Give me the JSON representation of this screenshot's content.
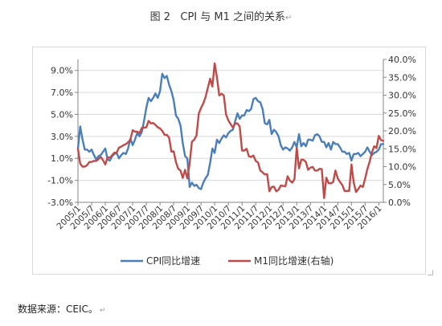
{
  "caption": {
    "fig_label": "图 2",
    "title": "CPI 与 M1 之间的关系",
    "end_mark": "↵"
  },
  "source": {
    "text": "数据来源：CEIC。",
    "end_mark": "↵"
  },
  "colors": {
    "cpi": "#4a7ebb",
    "m1": "#be4b48",
    "axis": "#868686",
    "text": "#333333"
  },
  "chart_data": {
    "type": "line",
    "title": "",
    "xlabel": "",
    "ylabel": "",
    "y_left": {
      "ticks": [
        "-3.0%",
        "-1.0%",
        "1.0%",
        "3.0%",
        "5.0%",
        "7.0%",
        "9.0%"
      ],
      "range": [
        -3,
        10
      ]
    },
    "y_right": {
      "ticks": [
        "0.0%",
        "5.0%",
        "10.0%",
        "15.0%",
        "20.0%",
        "25.0%",
        "30.0%",
        "35.0%",
        "40.0%"
      ],
      "range": [
        0,
        40
      ]
    },
    "x_ticks": [
      "2005/1",
      "2005/7",
      "2006/1",
      "2006/7",
      "2007/1",
      "2007/7",
      "2008/1",
      "2008/7",
      "2009/1",
      "2009/7",
      "2010/1",
      "2010/7",
      "2011/1",
      "2011/7",
      "2012/1",
      "2012/7",
      "2013/1",
      "2013/7",
      "2014/1",
      "2014/7",
      "2015/1",
      "2015/7",
      "2016/1"
    ],
    "grid": "horizontal",
    "legend_position": "bottom",
    "series": [
      {
        "name": "CPI同比增速",
        "axis": "left",
        "color": "#4a7ebb",
        "points": [
          [
            "2005/1",
            1.9
          ],
          [
            "2005/2",
            3.9
          ],
          [
            "2005/3",
            2.7
          ],
          [
            "2005/4",
            1.8
          ],
          [
            "2005/5",
            1.8
          ],
          [
            "2005/6",
            1.6
          ],
          [
            "2005/7",
            1.8
          ],
          [
            "2005/8",
            1.3
          ],
          [
            "2005/9",
            0.9
          ],
          [
            "2005/10",
            1.2
          ],
          [
            "2005/11",
            1.3
          ],
          [
            "2005/12",
            1.6
          ],
          [
            "2006/1",
            1.9
          ],
          [
            "2006/2",
            0.9
          ],
          [
            "2006/3",
            0.8
          ],
          [
            "2006/4",
            1.2
          ],
          [
            "2006/5",
            1.4
          ],
          [
            "2006/6",
            1.5
          ],
          [
            "2006/7",
            1.0
          ],
          [
            "2006/8",
            1.3
          ],
          [
            "2006/9",
            1.5
          ],
          [
            "2006/10",
            1.4
          ],
          [
            "2006/11",
            1.9
          ],
          [
            "2006/12",
            2.8
          ],
          [
            "2007/1",
            2.2
          ],
          [
            "2007/2",
            2.7
          ],
          [
            "2007/3",
            3.3
          ],
          [
            "2007/4",
            3.0
          ],
          [
            "2007/5",
            3.4
          ],
          [
            "2007/6",
            4.4
          ],
          [
            "2007/7",
            5.6
          ],
          [
            "2007/8",
            6.5
          ],
          [
            "2007/9",
            6.2
          ],
          [
            "2007/10",
            6.5
          ],
          [
            "2007/11",
            6.9
          ],
          [
            "2007/12",
            6.5
          ],
          [
            "2008/1",
            7.1
          ],
          [
            "2008/2",
            8.7
          ],
          [
            "2008/3",
            8.3
          ],
          [
            "2008/4",
            8.5
          ],
          [
            "2008/5",
            7.7
          ],
          [
            "2008/6",
            7.1
          ],
          [
            "2008/7",
            6.3
          ],
          [
            "2008/8",
            4.9
          ],
          [
            "2008/9",
            4.6
          ],
          [
            "2008/10",
            4.0
          ],
          [
            "2008/11",
            2.4
          ],
          [
            "2008/12",
            1.2
          ],
          [
            "2009/1",
            1.0
          ],
          [
            "2009/2",
            -1.6
          ],
          [
            "2009/3",
            -1.2
          ],
          [
            "2009/4",
            -1.5
          ],
          [
            "2009/5",
            -1.4
          ],
          [
            "2009/6",
            -1.7
          ],
          [
            "2009/7",
            -1.8
          ],
          [
            "2009/8",
            -1.2
          ],
          [
            "2009/9",
            -0.8
          ],
          [
            "2009/10",
            -0.5
          ],
          [
            "2009/11",
            0.6
          ],
          [
            "2009/12",
            1.9
          ],
          [
            "2010/1",
            1.5
          ],
          [
            "2010/2",
            2.7
          ],
          [
            "2010/3",
            2.4
          ],
          [
            "2010/4",
            2.8
          ],
          [
            "2010/5",
            3.1
          ],
          [
            "2010/6",
            2.9
          ],
          [
            "2010/7",
            3.3
          ],
          [
            "2010/8",
            3.5
          ],
          [
            "2010/9",
            3.6
          ],
          [
            "2010/10",
            4.4
          ],
          [
            "2010/11",
            5.1
          ],
          [
            "2010/12",
            4.6
          ],
          [
            "2011/1",
            4.9
          ],
          [
            "2011/2",
            4.9
          ],
          [
            "2011/3",
            5.4
          ],
          [
            "2011/4",
            5.3
          ],
          [
            "2011/5",
            5.5
          ],
          [
            "2011/6",
            6.4
          ],
          [
            "2011/7",
            6.5
          ],
          [
            "2011/8",
            6.2
          ],
          [
            "2011/9",
            6.1
          ],
          [
            "2011/10",
            5.5
          ],
          [
            "2011/11",
            4.2
          ],
          [
            "2011/12",
            4.1
          ],
          [
            "2012/1",
            4.5
          ],
          [
            "2012/2",
            3.2
          ],
          [
            "2012/3",
            3.6
          ],
          [
            "2012/4",
            3.4
          ],
          [
            "2012/5",
            3.0
          ],
          [
            "2012/6",
            2.2
          ],
          [
            "2012/7",
            1.8
          ],
          [
            "2012/8",
            2.0
          ],
          [
            "2012/9",
            1.9
          ],
          [
            "2012/10",
            1.7
          ],
          [
            "2012/11",
            2.0
          ],
          [
            "2012/12",
            2.5
          ],
          [
            "2013/1",
            2.0
          ],
          [
            "2013/2",
            3.2
          ],
          [
            "2013/3",
            2.1
          ],
          [
            "2013/4",
            2.4
          ],
          [
            "2013/5",
            2.1
          ],
          [
            "2013/6",
            2.7
          ],
          [
            "2013/7",
            2.7
          ],
          [
            "2013/8",
            2.6
          ],
          [
            "2013/9",
            3.1
          ],
          [
            "2013/10",
            3.2
          ],
          [
            "2013/11",
            3.0
          ],
          [
            "2013/12",
            2.5
          ],
          [
            "2014/1",
            2.5
          ],
          [
            "2014/2",
            2.0
          ],
          [
            "2014/3",
            2.4
          ],
          [
            "2014/4",
            1.8
          ],
          [
            "2014/5",
            2.5
          ],
          [
            "2014/6",
            2.3
          ],
          [
            "2014/7",
            2.3
          ],
          [
            "2014/8",
            2.0
          ],
          [
            "2014/9",
            1.6
          ],
          [
            "2014/10",
            1.6
          ],
          [
            "2014/11",
            1.4
          ],
          [
            "2014/12",
            1.5
          ],
          [
            "2015/1",
            0.8
          ],
          [
            "2015/2",
            1.4
          ],
          [
            "2015/3",
            1.4
          ],
          [
            "2015/4",
            1.5
          ],
          [
            "2015/5",
            1.2
          ],
          [
            "2015/6",
            1.4
          ],
          [
            "2015/7",
            1.6
          ],
          [
            "2015/8",
            2.0
          ],
          [
            "2015/9",
            1.6
          ],
          [
            "2015/10",
            1.3
          ],
          [
            "2015/11",
            1.5
          ],
          [
            "2015/12",
            1.6
          ],
          [
            "2016/1",
            1.8
          ],
          [
            "2016/2",
            2.3
          ],
          [
            "2016/3",
            2.3
          ]
        ]
      },
      {
        "name": "M1同比增速(右轴)",
        "axis": "right",
        "color": "#be4b48",
        "points": [
          [
            "2005/1",
            15.0
          ],
          [
            "2005/2",
            10.8
          ],
          [
            "2005/3",
            10.0
          ],
          [
            "2005/4",
            10.0
          ],
          [
            "2005/5",
            10.4
          ],
          [
            "2005/6",
            11.3
          ],
          [
            "2005/7",
            11.3
          ],
          [
            "2005/8",
            11.6
          ],
          [
            "2005/9",
            11.6
          ],
          [
            "2005/10",
            12.1
          ],
          [
            "2005/11",
            12.7
          ],
          [
            "2005/12",
            11.8
          ],
          [
            "2006/1",
            10.6
          ],
          [
            "2006/2",
            12.6
          ],
          [
            "2006/3",
            12.5
          ],
          [
            "2006/4",
            13.2
          ],
          [
            "2006/5",
            13.9
          ],
          [
            "2006/6",
            13.9
          ],
          [
            "2006/7",
            15.3
          ],
          [
            "2006/8",
            15.6
          ],
          [
            "2006/9",
            16.0
          ],
          [
            "2006/10",
            16.3
          ],
          [
            "2006/11",
            16.8
          ],
          [
            "2006/12",
            17.5
          ],
          [
            "2007/1",
            20.2
          ],
          [
            "2007/2",
            19.8
          ],
          [
            "2007/3",
            19.8
          ],
          [
            "2007/4",
            19.4
          ],
          [
            "2007/5",
            20.8
          ],
          [
            "2007/6",
            20.9
          ],
          [
            "2007/7",
            21.0
          ],
          [
            "2007/8",
            22.8
          ],
          [
            "2007/9",
            22.1
          ],
          [
            "2007/10",
            22.2
          ],
          [
            "2007/11",
            21.7
          ],
          [
            "2007/12",
            21.0
          ],
          [
            "2008/1",
            20.7
          ],
          [
            "2008/2",
            20.0
          ],
          [
            "2008/3",
            18.9
          ],
          [
            "2008/4",
            18.9
          ],
          [
            "2008/5",
            18.1
          ],
          [
            "2008/6",
            14.2
          ],
          [
            "2008/7",
            14.3
          ],
          [
            "2008/8",
            11.3
          ],
          [
            "2008/9",
            9.4
          ],
          [
            "2008/10",
            8.9
          ],
          [
            "2008/11",
            6.8
          ],
          [
            "2008/12",
            9.1
          ],
          [
            "2009/1",
            6.7
          ],
          [
            "2009/2",
            10.9
          ],
          [
            "2009/3",
            17.0
          ],
          [
            "2009/4",
            17.5
          ],
          [
            "2009/5",
            18.7
          ],
          [
            "2009/6",
            24.8
          ],
          [
            "2009/7",
            26.4
          ],
          [
            "2009/8",
            27.7
          ],
          [
            "2009/9",
            29.5
          ],
          [
            "2009/10",
            32.0
          ],
          [
            "2009/11",
            34.6
          ],
          [
            "2009/12",
            32.4
          ],
          [
            "2010/1",
            38.9
          ],
          [
            "2010/2",
            34.9
          ],
          [
            "2010/3",
            29.9
          ],
          [
            "2010/4",
            30.4
          ],
          [
            "2010/5",
            29.9
          ],
          [
            "2010/6",
            24.6
          ],
          [
            "2010/7",
            22.9
          ],
          [
            "2010/8",
            21.9
          ],
          [
            "2010/9",
            20.9
          ],
          [
            "2010/10",
            22.1
          ],
          [
            "2010/11",
            22.1
          ],
          [
            "2010/12",
            21.2
          ],
          [
            "2011/1",
            14.5
          ],
          [
            "2011/2",
            14.5
          ],
          [
            "2011/3",
            15.0
          ],
          [
            "2011/4",
            12.9
          ],
          [
            "2011/5",
            12.7
          ],
          [
            "2011/6",
            13.1
          ],
          [
            "2011/7",
            11.6
          ],
          [
            "2011/8",
            11.2
          ],
          [
            "2011/9",
            8.9
          ],
          [
            "2011/10",
            8.4
          ],
          [
            "2011/11",
            7.8
          ],
          [
            "2011/12",
            7.9
          ],
          [
            "2012/1",
            3.1
          ],
          [
            "2012/2",
            4.3
          ],
          [
            "2012/3",
            4.4
          ],
          [
            "2012/4",
            3.1
          ],
          [
            "2012/5",
            3.5
          ],
          [
            "2012/6",
            4.7
          ],
          [
            "2012/7",
            4.6
          ],
          [
            "2012/8",
            4.5
          ],
          [
            "2012/9",
            7.3
          ],
          [
            "2012/10",
            6.1
          ],
          [
            "2012/11",
            5.5
          ],
          [
            "2012/12",
            6.5
          ],
          [
            "2013/1",
            15.3
          ],
          [
            "2013/2",
            9.5
          ],
          [
            "2013/3",
            11.9
          ],
          [
            "2013/4",
            11.9
          ],
          [
            "2013/5",
            11.3
          ],
          [
            "2013/6",
            9.1
          ],
          [
            "2013/7",
            9.7
          ],
          [
            "2013/8",
            9.9
          ],
          [
            "2013/9",
            8.9
          ],
          [
            "2013/10",
            8.9
          ],
          [
            "2013/11",
            9.4
          ],
          [
            "2013/12",
            9.3
          ],
          [
            "2014/1",
            1.2
          ],
          [
            "2014/2",
            6.9
          ],
          [
            "2014/3",
            5.4
          ],
          [
            "2014/4",
            5.3
          ],
          [
            "2014/5",
            5.7
          ],
          [
            "2014/6",
            8.9
          ],
          [
            "2014/7",
            6.7
          ],
          [
            "2014/8",
            5.7
          ],
          [
            "2014/9",
            4.8
          ],
          [
            "2014/10",
            3.2
          ],
          [
            "2014/11",
            3.2
          ],
          [
            "2014/12",
            3.2
          ],
          [
            "2015/1",
            10.6
          ],
          [
            "2015/2",
            5.6
          ],
          [
            "2015/3",
            2.9
          ],
          [
            "2015/4",
            3.7
          ],
          [
            "2015/5",
            4.7
          ],
          [
            "2015/6",
            4.3
          ],
          [
            "2015/7",
            6.6
          ],
          [
            "2015/8",
            9.3
          ],
          [
            "2015/9",
            11.4
          ],
          [
            "2015/10",
            14.0
          ],
          [
            "2015/11",
            15.7
          ],
          [
            "2015/12",
            15.2
          ],
          [
            "2016/1",
            18.6
          ],
          [
            "2016/2",
            17.4
          ],
          [
            "2016/3",
            17.2
          ]
        ]
      }
    ]
  }
}
